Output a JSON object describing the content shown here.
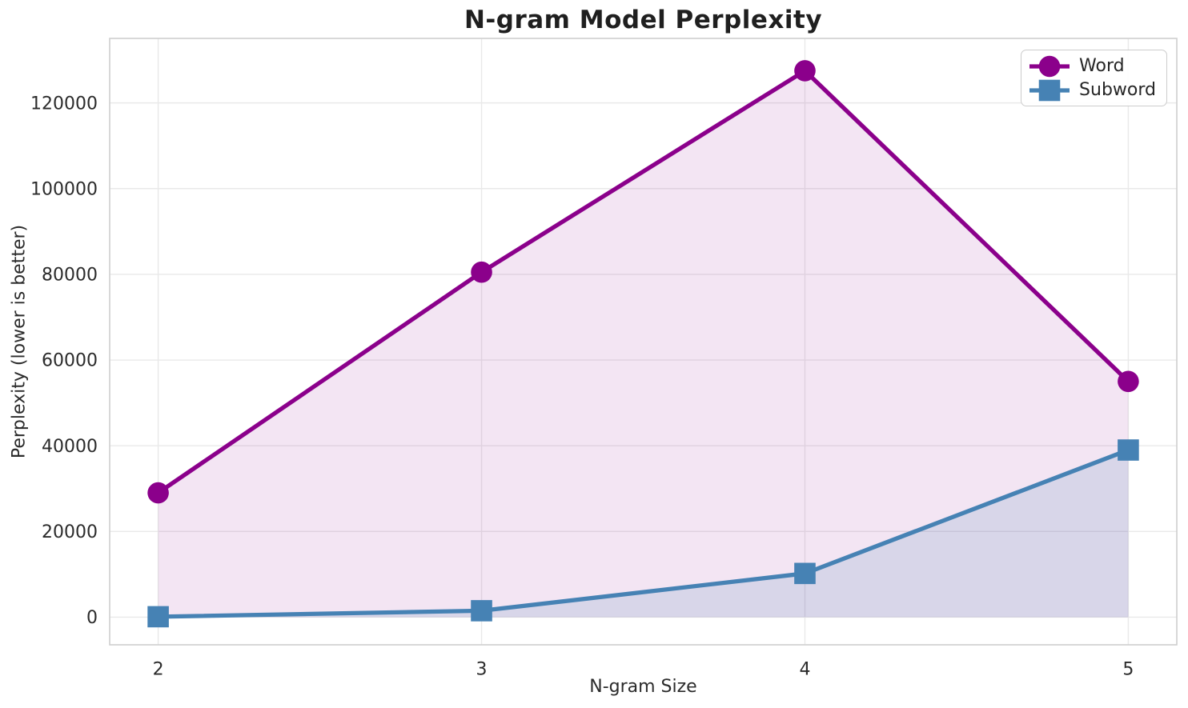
{
  "figure": {
    "background": "#ffffff"
  },
  "chart_data": {
    "type": "line",
    "title": "N-gram Model Perplexity",
    "xlabel": "N-gram Size",
    "ylabel": "Perplexity (lower is better)",
    "x": [
      2,
      3,
      4,
      5
    ],
    "xticks": [
      2,
      3,
      4,
      5
    ],
    "yticks": [
      0,
      20000,
      40000,
      60000,
      80000,
      100000,
      120000
    ],
    "xlim": [
      1.85,
      5.15
    ],
    "ylim": [
      -6450,
      135050
    ],
    "grid": true,
    "legend_position": "upper-right",
    "series": [
      {
        "name": "Word",
        "marker": "circle",
        "color": "#8B008B",
        "fill_color": "rgba(139,0,139,0.10)",
        "area_to_zero": true,
        "values": [
          29000,
          80500,
          127500,
          55000
        ]
      },
      {
        "name": "Subword",
        "marker": "square",
        "color": "#4682B4",
        "fill_color": "rgba(70,130,180,0.15)",
        "area_to_zero": true,
        "values": [
          100,
          1500,
          10200,
          39000
        ]
      }
    ],
    "style": {
      "grid_color": "#e9e9e9",
      "spine_color": "#cfcfcf",
      "tick_color": "#2b2b2b",
      "line_width": 5.3,
      "marker_size": 26.6
    }
  }
}
